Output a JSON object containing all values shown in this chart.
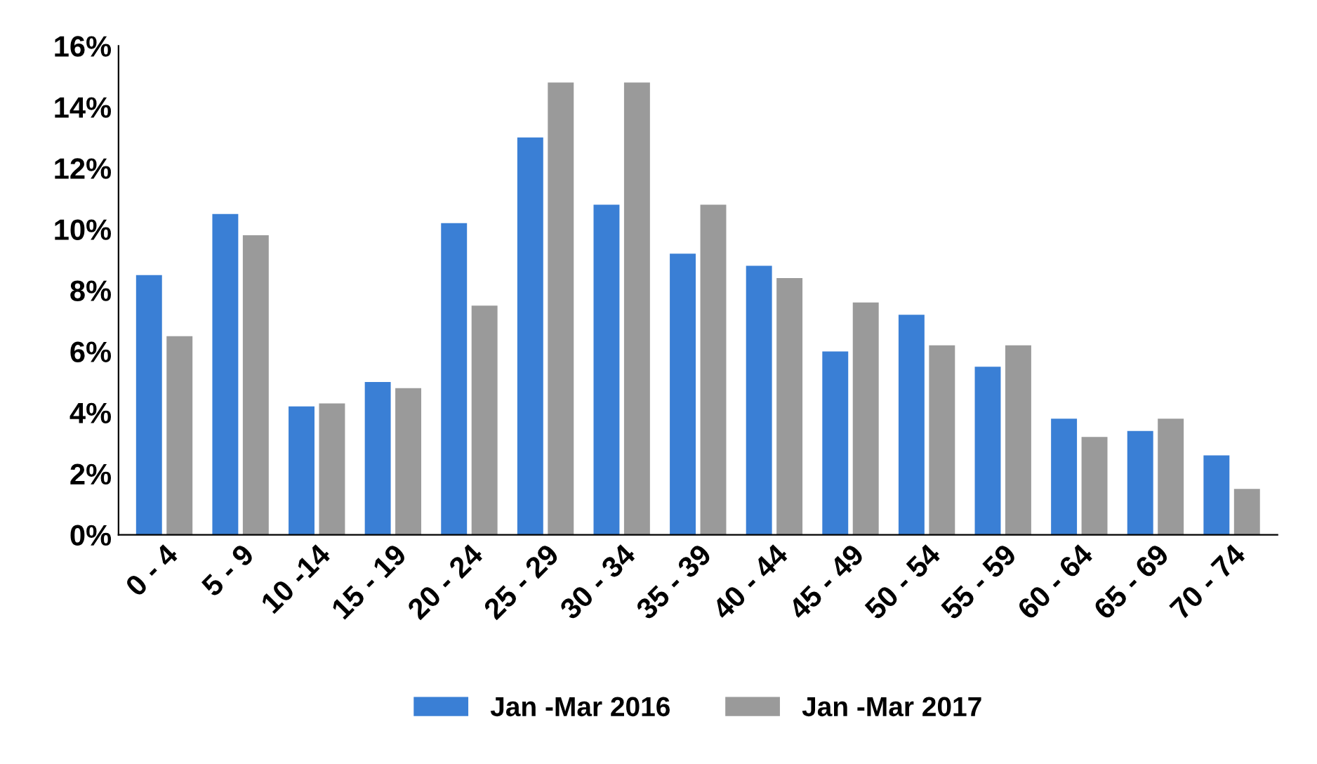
{
  "chart_data": {
    "type": "bar",
    "categories": [
      "0 - 4",
      "5 - 9",
      "10 -14",
      "15 - 19",
      "20 - 24",
      "25 - 29",
      "30 - 34",
      "35 - 39",
      "40 - 44",
      "45 - 49",
      "50 - 54",
      "55 - 59",
      "60 - 64",
      "65 - 69",
      "70 - 74"
    ],
    "series": [
      {
        "name": "Jan -Mar 2016",
        "color": "#3a7fd5",
        "values": [
          8.5,
          10.5,
          4.2,
          5.0,
          10.2,
          13.0,
          10.8,
          9.2,
          8.8,
          6.0,
          7.2,
          5.5,
          3.8,
          3.4,
          2.6
        ]
      },
      {
        "name": "Jan -Mar 2017",
        "color": "#9a9a9a",
        "values": [
          6.5,
          9.8,
          4.3,
          4.8,
          7.5,
          14.8,
          14.8,
          10.8,
          8.4,
          7.6,
          6.2,
          6.2,
          3.2,
          3.8,
          1.5
        ]
      }
    ],
    "ylim": [
      0,
      16
    ],
    "yticks": [
      {
        "value": 0,
        "label": "0%"
      },
      {
        "value": 2,
        "label": "2%"
      },
      {
        "value": 4,
        "label": "4%"
      },
      {
        "value": 6,
        "label": "6%"
      },
      {
        "value": 8,
        "label": "8%"
      },
      {
        "value": 10,
        "label": "10%"
      },
      {
        "value": 12,
        "label": "12%"
      },
      {
        "value": 14,
        "label": "14%"
      },
      {
        "value": 16,
        "label": "16%"
      }
    ],
    "grid": false,
    "legend": "bottom"
  }
}
